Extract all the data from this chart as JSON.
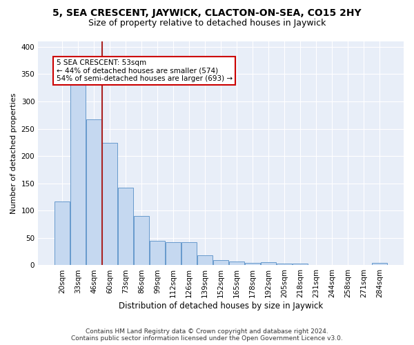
{
  "title": "5, SEA CRESCENT, JAYWICK, CLACTON-ON-SEA, CO15 2HY",
  "subtitle": "Size of property relative to detached houses in Jaywick",
  "xlabel": "Distribution of detached houses by size in Jaywick",
  "ylabel": "Number of detached properties",
  "categories": [
    "20sqm",
    "33sqm",
    "46sqm",
    "60sqm",
    "73sqm",
    "86sqm",
    "99sqm",
    "112sqm",
    "126sqm",
    "139sqm",
    "152sqm",
    "165sqm",
    "178sqm",
    "192sqm",
    "205sqm",
    "218sqm",
    "231sqm",
    "244sqm",
    "258sqm",
    "271sqm",
    "284sqm"
  ],
  "values": [
    117,
    332,
    267,
    224,
    142,
    90,
    45,
    42,
    42,
    18,
    9,
    7,
    5,
    6,
    3,
    3,
    0,
    0,
    0,
    0,
    5
  ],
  "bar_color": "#c5d8f0",
  "bar_edge_color": "#6699cc",
  "red_line_color": "#aa2222",
  "red_line_x": 2.5,
  "annotation_text_line1": "5 SEA CRESCENT: 53sqm",
  "annotation_text_line2": "← 44% of detached houses are smaller (574)",
  "annotation_text_line3": "54% of semi-detached houses are larger (693) →",
  "annotation_box_facecolor": "#ffffff",
  "annotation_box_edgecolor": "#cc0000",
  "ylim": [
    0,
    410
  ],
  "yticks": [
    0,
    50,
    100,
    150,
    200,
    250,
    300,
    350,
    400
  ],
  "background_color": "#e8eef8",
  "grid_color": "#ffffff",
  "footer_line1": "Contains HM Land Registry data © Crown copyright and database right 2024.",
  "footer_line2": "Contains public sector information licensed under the Open Government Licence v3.0.",
  "title_fontsize": 10,
  "subtitle_fontsize": 9,
  "xlabel_fontsize": 8.5,
  "ylabel_fontsize": 8,
  "tick_fontsize": 7.5,
  "footer_fontsize": 6.5,
  "annotation_fontsize": 7.5
}
